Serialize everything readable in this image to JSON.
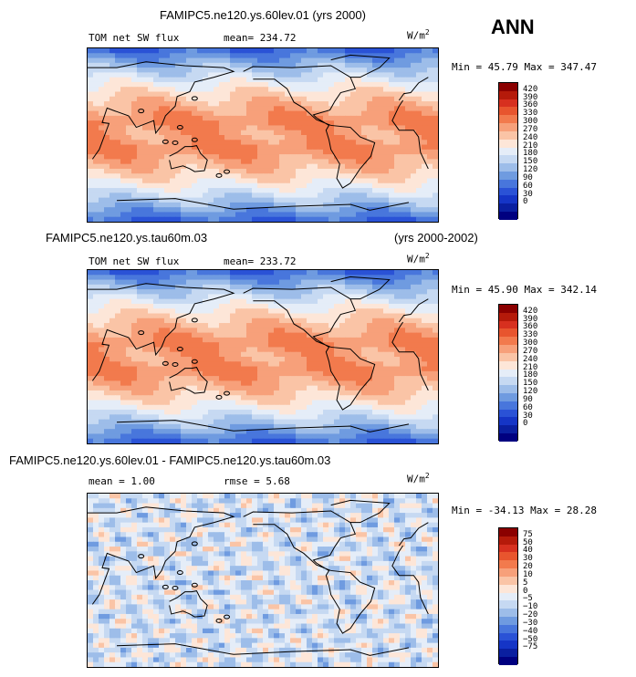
{
  "season": "ANN",
  "units": "W/m",
  "units_sup": "2",
  "panels": [
    {
      "title": "FAMIPC5.ne120.ys.60lev.01 (yrs 2000)",
      "left_text": "TOM net SW flux",
      "stat": "mean= 234.72",
      "minmax": "Min =  45.79 Max =  347.47",
      "levels": [
        "420",
        "390",
        "360",
        "330",
        "300",
        "270",
        "240",
        "210",
        "180",
        "150",
        "120",
        "90",
        "60",
        "30",
        "0"
      ],
      "colors": [
        "#8b0000",
        "#b51a0a",
        "#d7301f",
        "#e8552e",
        "#f27a4d",
        "#f7a07a",
        "#fac4a6",
        "#fde6d8",
        "#e5edf8",
        "#c6d9f2",
        "#9dbde9",
        "#6f9be0",
        "#4876dc",
        "#2a52d6",
        "#1535c6",
        "#0a1fa0",
        "#000080"
      ],
      "field": "sw"
    },
    {
      "title": "FAMIPC5.ne120.ys.tau60m.03",
      "title_right": "(yrs 2000-2002)",
      "left_text": "TOM net SW flux",
      "stat": "mean= 233.72",
      "minmax": "Min =  45.90 Max =  342.14",
      "levels": [
        "420",
        "390",
        "360",
        "330",
        "300",
        "270",
        "240",
        "210",
        "180",
        "150",
        "120",
        "90",
        "60",
        "30",
        "0"
      ],
      "colors": [
        "#8b0000",
        "#b51a0a",
        "#d7301f",
        "#e8552e",
        "#f27a4d",
        "#f7a07a",
        "#fac4a6",
        "#fde6d8",
        "#e5edf8",
        "#c6d9f2",
        "#9dbde9",
        "#6f9be0",
        "#4876dc",
        "#2a52d6",
        "#1535c6",
        "#0a1fa0",
        "#000080"
      ],
      "field": "sw"
    },
    {
      "title": "FAMIPC5.ne120.ys.60lev.01 - FAMIPC5.ne120.ys.tau60m.03",
      "left_text": "mean =    1.00",
      "stat": "rmse =    5.68",
      "minmax": "Min = -34.13 Max =  28.28",
      "levels": [
        "75",
        "50",
        "40",
        "30",
        "20",
        "10",
        "5",
        "0",
        "−5",
        "−10",
        "−20",
        "−30",
        "−40",
        "−50",
        "−75"
      ],
      "colors": [
        "#8b0000",
        "#b51a0a",
        "#d7301f",
        "#e8552e",
        "#f27a4d",
        "#f7a07a",
        "#fac4a6",
        "#fde6d8",
        "#e5edf8",
        "#c6d9f2",
        "#9dbde9",
        "#6f9be0",
        "#4876dc",
        "#2a52d6",
        "#1535c6",
        "#0a1fa0",
        "#000080"
      ],
      "field": "diff"
    }
  ]
}
